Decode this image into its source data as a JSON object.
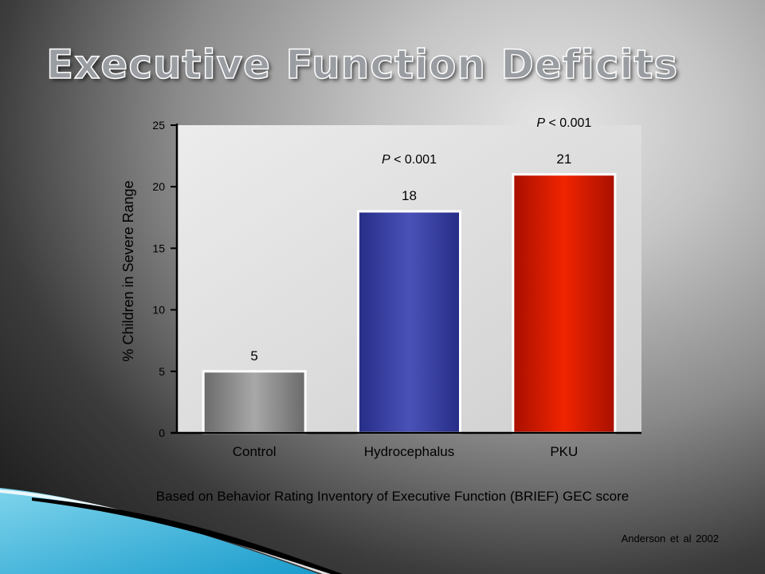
{
  "slide": {
    "title": "Executive Function Deficits",
    "caption": "Based on Behavior Rating Inventory of Executive Function (BRIEF) GEC score",
    "citation": "Anderson et al 2002"
  },
  "chart_data": {
    "type": "bar",
    "title": "",
    "xlabel": "",
    "ylabel": "% Children in Severe Range",
    "ylim": [
      0,
      25
    ],
    "yticks": [
      0,
      5,
      10,
      15,
      20,
      25
    ],
    "categories": [
      "Control",
      "Hydrocephalus",
      "PKU"
    ],
    "values": [
      5,
      18,
      21
    ],
    "data_labels": [
      "5",
      "18",
      "21"
    ],
    "annotations": [
      {
        "category": "Hydrocephalus",
        "text": "P < 0.001"
      },
      {
        "category": "PKU",
        "text": "P < 0.001"
      }
    ],
    "bar_colors": [
      "#8c8c8c",
      "#3b44a8",
      "#d81a00"
    ],
    "plot_background": "#d9d9d9",
    "grid": false,
    "legend": "none"
  }
}
